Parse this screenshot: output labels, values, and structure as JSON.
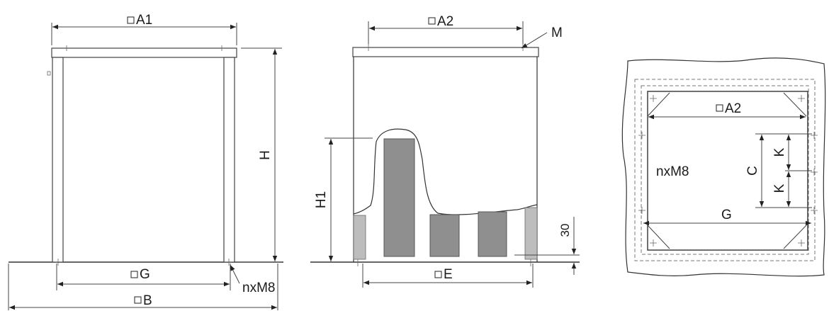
{
  "views": {
    "front": {
      "top_width_label": "A1",
      "height_label": "H",
      "base_width_label": "G",
      "overall_width_label": "B",
      "fixing_label": "nxM8"
    },
    "section": {
      "top_width_label": "A2",
      "flange_label": "M",
      "filter_height_label": "H1",
      "offset_label": "30",
      "base_width_label": "E"
    },
    "plan": {
      "width_label": "A2",
      "spacing_label_c": "C",
      "spacing_label_k_upper": "K",
      "spacing_label_k_lower": "K",
      "fixing_label": "nxM8",
      "base_width_label": "G"
    }
  }
}
